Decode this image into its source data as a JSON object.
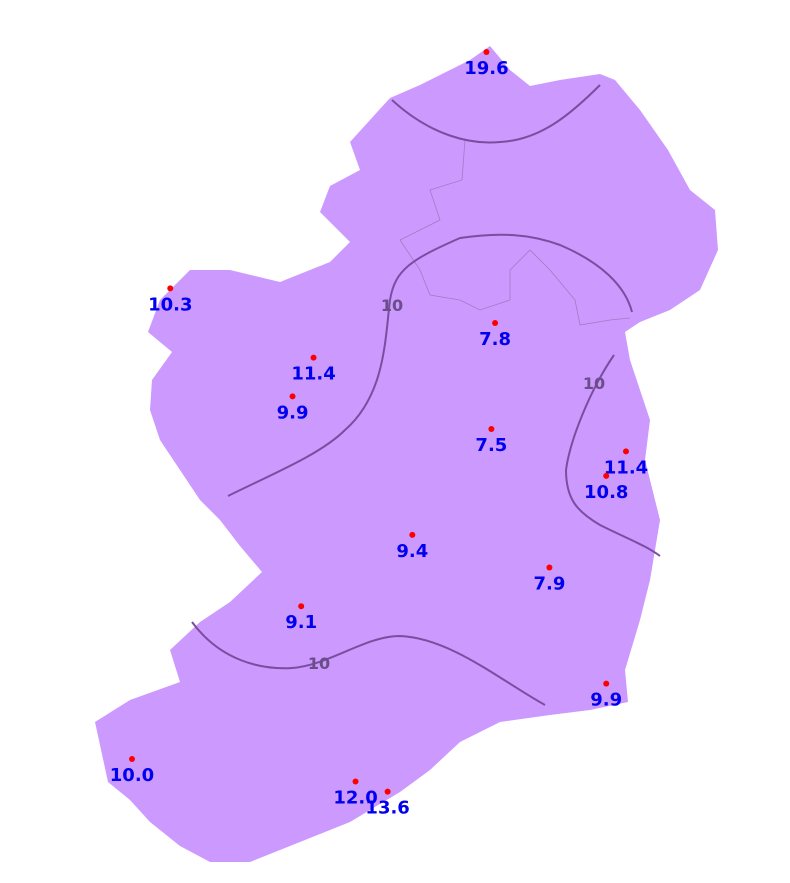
{
  "colors": {
    "land": "#cc99ff",
    "contour": "#7a4e9e",
    "contour_label": "#6b4d8a",
    "station_point": "#ff0000",
    "station_label": "#0000ee",
    "border": "#a07cc0"
  },
  "contour_labels": [
    "10",
    "10",
    "10"
  ],
  "stations": [
    {
      "value": "19.6",
      "lon": -7.29,
      "lat": 55.39
    },
    {
      "value": "10.3",
      "lon": -9.85,
      "lat": 54.23
    },
    {
      "value": "7.8",
      "lon": -7.22,
      "lat": 54.06
    },
    {
      "value": "11.4",
      "lon": -8.69,
      "lat": 53.89
    },
    {
      "value": "9.9",
      "lon": -8.86,
      "lat": 53.7
    },
    {
      "value": "7.5",
      "lon": -7.25,
      "lat": 53.54
    },
    {
      "value": "11.4",
      "lon": -6.16,
      "lat": 53.43
    },
    {
      "value": "10.8",
      "lon": -6.32,
      "lat": 53.31
    },
    {
      "value": "9.4",
      "lon": -7.89,
      "lat": 53.02
    },
    {
      "value": "7.9",
      "lon": -6.78,
      "lat": 52.86
    },
    {
      "value": "9.1",
      "lon": -8.79,
      "lat": 52.67
    },
    {
      "value": "9.9",
      "lon": -6.32,
      "lat": 52.29
    },
    {
      "value": "10.0",
      "lon": -10.16,
      "lat": 51.92
    },
    {
      "value": "12.0",
      "lon": -8.35,
      "lat": 51.81
    },
    {
      "value": "13.6",
      "lon": -8.09,
      "lat": 51.76
    }
  ]
}
